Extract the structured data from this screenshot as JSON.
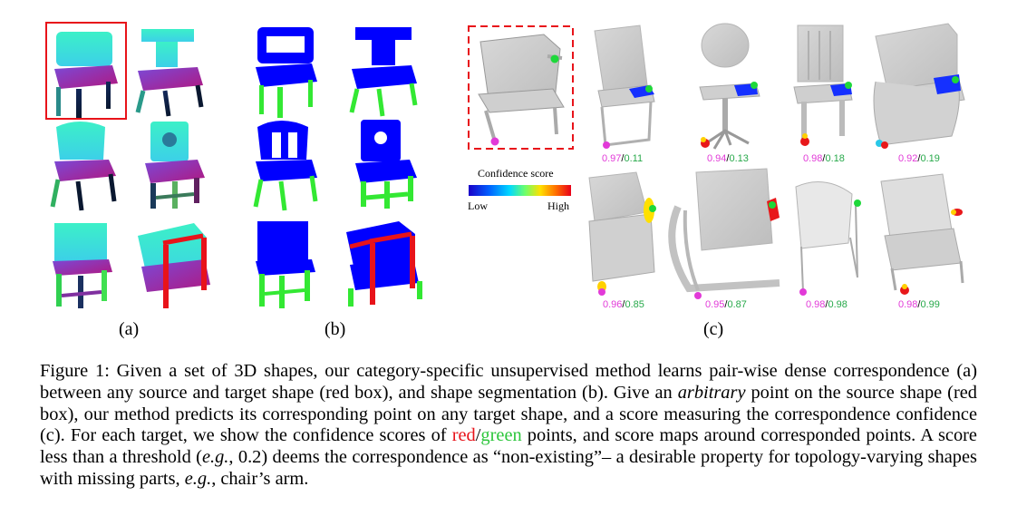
{
  "panels": {
    "a_label": "(a)",
    "b_label": "(b)",
    "c_label": "(c)"
  },
  "colorbar": {
    "title": "Confidence score",
    "low": "Low",
    "high": "High",
    "gradient": [
      "#1a00c8",
      "#0060ff",
      "#00d8ff",
      "#6cff6c",
      "#ffe000",
      "#ff7000",
      "#e8001a"
    ]
  },
  "scores": [
    {
      "red": "0.97",
      "sep": "/",
      "green": "0.11"
    },
    {
      "red": "0.94",
      "sep": "/",
      "green": "0.13"
    },
    {
      "red": "0.98",
      "sep": "/",
      "green": "0.18"
    },
    {
      "red": "0.92",
      "sep": "/",
      "green": "0.19"
    },
    {
      "red": "0.96",
      "sep": "/",
      "green": "0.85"
    },
    {
      "red": "0.95",
      "sep": "/",
      "green": "0.87"
    },
    {
      "red": "0.98",
      "sep": "/",
      "green": "0.98"
    },
    {
      "red": "0.98",
      "sep": "/",
      "green": "0.99"
    }
  ],
  "colors": {
    "source_box": "#e8131a",
    "segment_seat": "#0000ff",
    "segment_leg": "#33e833",
    "segment_arm": "#e8131a",
    "score_red": "#e23ad8",
    "score_green": "#27a94a"
  },
  "caption": {
    "p1": "Figure 1: Given a set of 3D shapes, our category-specific unsupervised method learns pair-wise dense correspondence (a) between any source and target shape (red box), and shape segmentation (b). Give an ",
    "p1_em": "arbitrary",
    "p2": " point on the source shape (red box), our method predicts its corresponding point on any target shape, and a score measuring the correspondence confidence (c). For each target, we show the confidence scores of ",
    "red_word": "red",
    "slash": "/",
    "green_word": "green",
    "p3": " points, and score maps around corresponded points. A score less than a threshold (",
    "eg1": "e.g.",
    "p4": ", 0.2) deems the correspondence as “non-existing”– a desirable property for topology-varying shapes with missing parts, ",
    "eg2": "e.g.",
    "p5": ", chair’s arm."
  }
}
